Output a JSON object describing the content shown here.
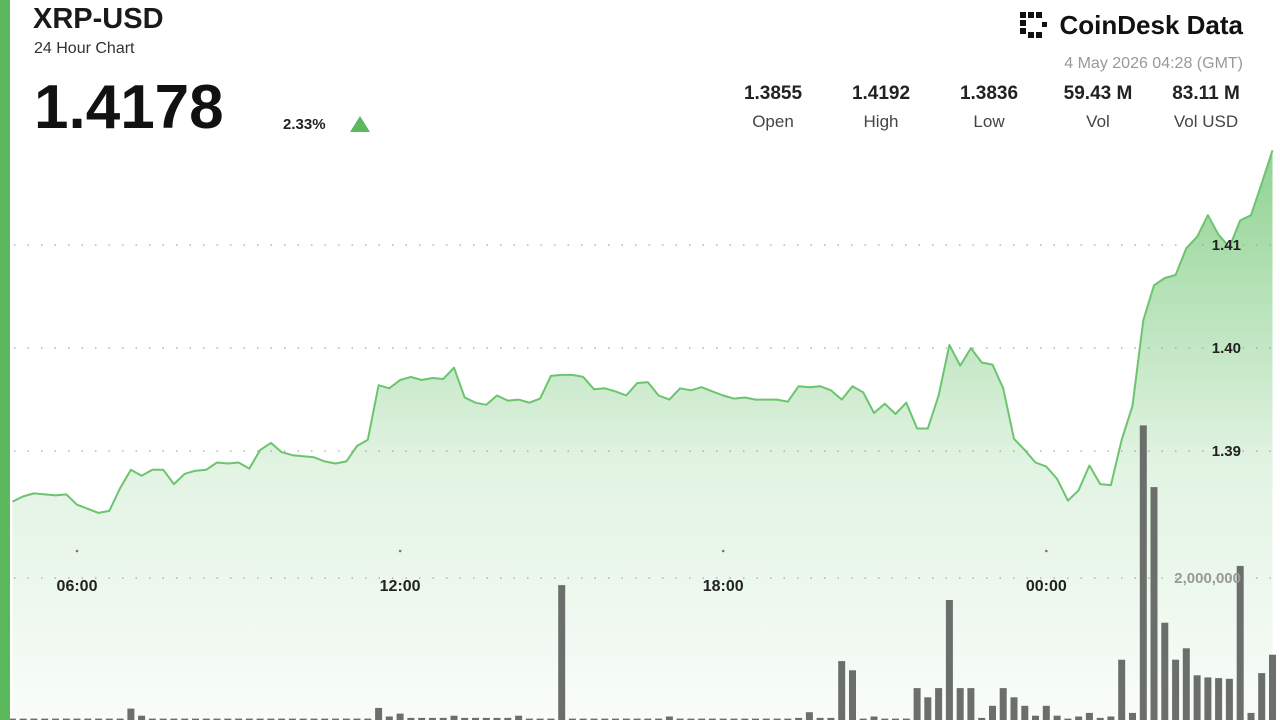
{
  "header": {
    "title": "XRP-USD",
    "subtitle": "24 Hour Chart",
    "price": "1.4178",
    "change": "2.33%",
    "brand": "CoinDesk Data",
    "timestamp": "4 May 2026 04:28 (GMT)",
    "stats": [
      {
        "value": "1.3855",
        "label": "Open"
      },
      {
        "value": "1.4192",
        "label": "High"
      },
      {
        "value": "1.3836",
        "label": "Low"
      },
      {
        "value": "59.43 M",
        "label": "Vol"
      },
      {
        "value": "83.11 M",
        "label": "Vol USD"
      }
    ]
  },
  "chart_data": [
    {
      "type": "area",
      "color": "#6cc46f",
      "categories": [
        null,
        null,
        null,
        null,
        null,
        null,
        "06:00",
        null,
        null,
        null,
        null,
        null,
        null,
        null,
        null,
        null,
        null,
        null,
        null,
        null,
        null,
        null,
        null,
        null,
        null,
        null,
        null,
        null,
        null,
        null,
        null,
        null,
        null,
        null,
        null,
        null,
        "12:00",
        null,
        null,
        null,
        null,
        null,
        null,
        null,
        null,
        null,
        null,
        null,
        null,
        null,
        null,
        null,
        null,
        null,
        null,
        null,
        null,
        null,
        null,
        null,
        null,
        null,
        null,
        null,
        null,
        null,
        "18:00",
        null,
        null,
        null,
        null,
        null,
        null,
        null,
        null,
        null,
        null,
        null,
        null,
        null,
        null,
        null,
        null,
        null,
        null,
        null,
        null,
        null,
        null,
        null,
        null,
        null,
        null,
        null,
        null,
        null,
        "00:00",
        null,
        null,
        null,
        null,
        null,
        null,
        null,
        null,
        null,
        null,
        null,
        null,
        null,
        null,
        null,
        null,
        null,
        null,
        null,
        null,
        null
      ],
      "values": [
        1.3851,
        1.3856,
        1.3859,
        1.3858,
        1.3857,
        1.3858,
        1.3848,
        1.3844,
        1.384,
        1.3842,
        1.3864,
        1.3882,
        1.3876,
        1.3882,
        1.3882,
        1.3868,
        1.3878,
        1.3881,
        1.3882,
        1.3889,
        1.3888,
        1.3889,
        1.3883,
        1.3901,
        1.3908,
        1.3899,
        1.3896,
        1.3895,
        1.3894,
        1.389,
        1.3888,
        1.389,
        1.3905,
        1.3911,
        1.3964,
        1.3961,
        1.3969,
        1.3972,
        1.3969,
        1.3971,
        1.397,
        1.3981,
        1.3952,
        1.3947,
        1.3945,
        1.3954,
        1.3949,
        1.395,
        1.3947,
        1.3951,
        1.3973,
        1.3974,
        1.3974,
        1.3972,
        1.396,
        1.3961,
        1.3958,
        1.3954,
        1.3966,
        1.3967,
        1.3954,
        1.395,
        1.3961,
        1.3959,
        1.3962,
        1.3958,
        1.3954,
        1.3951,
        1.3952,
        1.395,
        1.395,
        1.395,
        1.3948,
        1.3963,
        1.3962,
        1.3963,
        1.3959,
        1.395,
        1.3963,
        1.3957,
        1.3937,
        1.3946,
        1.3936,
        1.3947,
        1.3922,
        1.3922,
        1.3954,
        1.4003,
        1.3983,
        1.4,
        1.3986,
        1.3984,
        1.3961,
        1.3912,
        1.3901,
        1.3889,
        1.3885,
        1.3873,
        1.3852,
        1.3862,
        1.3886,
        1.3868,
        1.3867,
        1.3911,
        1.3944,
        1.4027,
        1.4061,
        1.4068,
        1.4071,
        1.4097,
        1.4108,
        1.4129,
        1.411,
        1.4098,
        1.4124,
        1.4129,
        1.416,
        1.4192
      ],
      "ylim": [
        1.3639,
        1.4202
      ],
      "yticks": [
        1.39,
        {
          "value": 1.4,
          "label": "1.40"
        },
        1.41
      ],
      "grid": true
    },
    {
      "type": "bar",
      "color": "#6b6f6b",
      "values": [
        20000,
        20000,
        20000,
        20000,
        20000,
        20000,
        20000,
        20000,
        20000,
        20000,
        20000,
        160000,
        60000,
        20000,
        20000,
        20000,
        20000,
        20000,
        20000,
        20000,
        20000,
        20000,
        20000,
        20000,
        20000,
        20000,
        20000,
        20000,
        20000,
        20000,
        20000,
        20000,
        20000,
        20000,
        170000,
        50000,
        90000,
        30000,
        30000,
        30000,
        30000,
        60000,
        30000,
        30000,
        30000,
        30000,
        30000,
        60000,
        20000,
        20000,
        20000,
        1900000,
        20000,
        20000,
        20000,
        20000,
        20000,
        20000,
        20000,
        20000,
        20000,
        50000,
        20000,
        20000,
        20000,
        20000,
        20000,
        20000,
        20000,
        20000,
        20000,
        20000,
        20000,
        30000,
        110000,
        30000,
        30000,
        830000,
        700000,
        20000,
        50000,
        20000,
        20000,
        20000,
        450000,
        320000,
        450000,
        1690000,
        450000,
        450000,
        30000,
        200000,
        450000,
        320000,
        200000,
        60000,
        200000,
        60000,
        20000,
        50000,
        100000,
        30000,
        50000,
        850000,
        100000,
        4150000,
        3280000,
        1370000,
        850000,
        1010000,
        630000,
        600000,
        590000,
        580000,
        2170000,
        100000,
        660000,
        920000
      ],
      "ylim": [
        0,
        8170000
      ],
      "yticks": [
        {
          "value": 2000000,
          "label": "2,000,000"
        }
      ],
      "grid": true
    }
  ]
}
